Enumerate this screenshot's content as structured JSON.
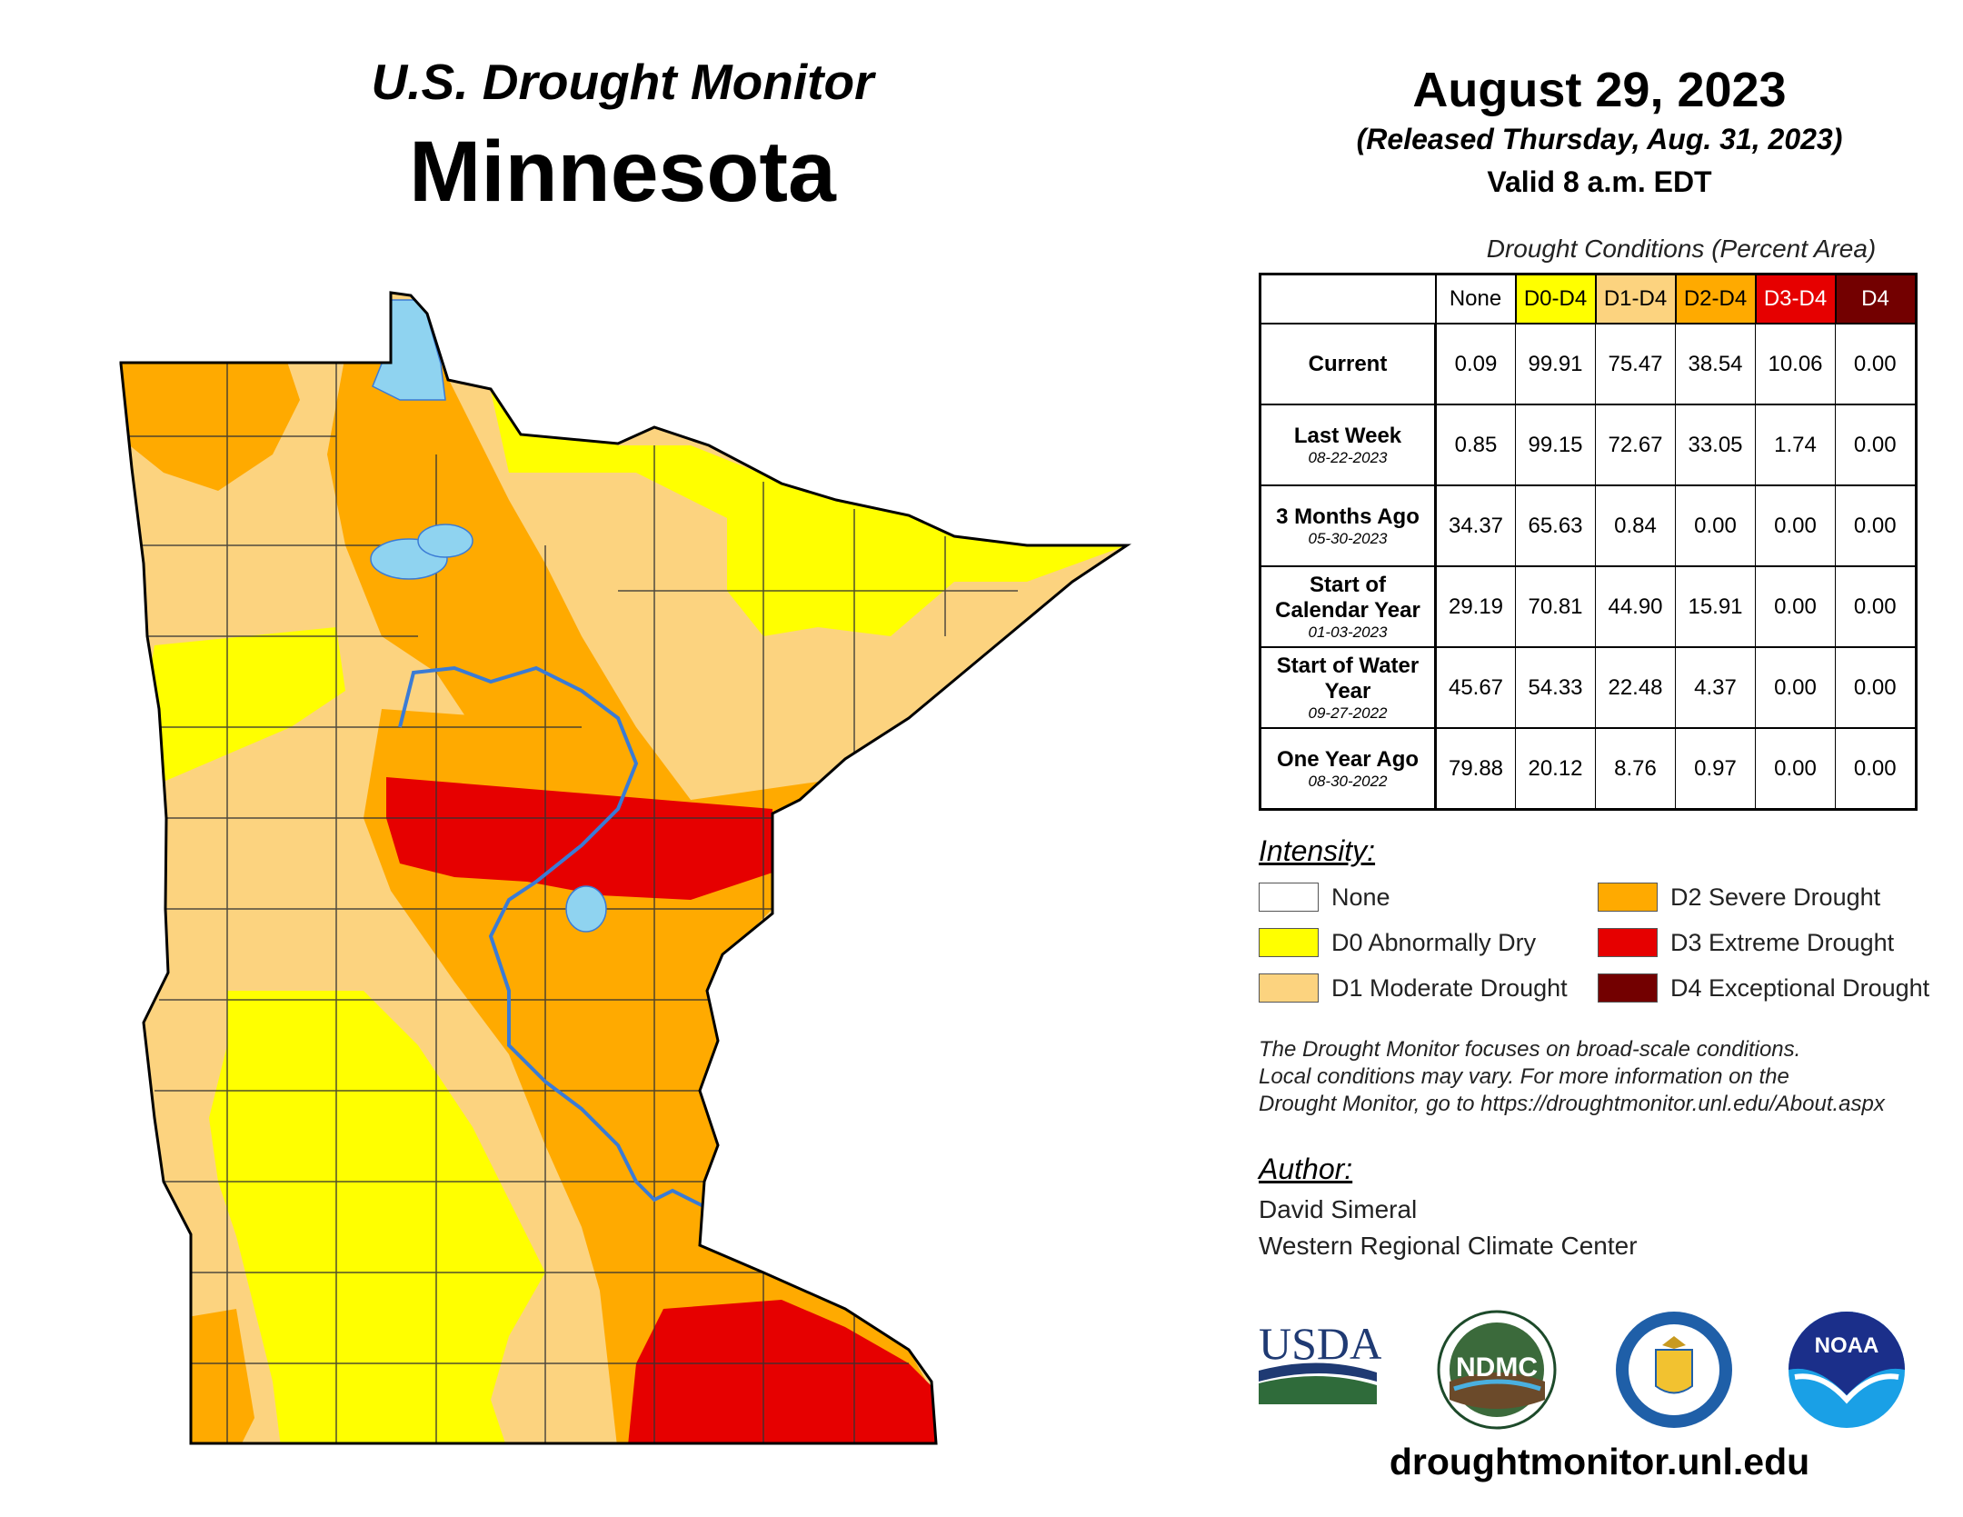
{
  "header": {
    "title": "U.S. Drought Monitor",
    "state": "Minnesota"
  },
  "date": {
    "title": "August 29, 2023",
    "released": "(Released Thursday, Aug. 31, 2023)",
    "valid": "Valid 8 a.m. EDT"
  },
  "table": {
    "caption": "Drought Conditions (Percent Area)",
    "columns": [
      "None",
      "D0-D4",
      "D1-D4",
      "D2-D4",
      "D3-D4",
      "D4"
    ],
    "rows": [
      {
        "label": "Current",
        "date": "",
        "values": [
          "0.09",
          "99.91",
          "75.47",
          "38.54",
          "10.06",
          "0.00"
        ]
      },
      {
        "label": "Last Week",
        "date": "08-22-2023",
        "values": [
          "0.85",
          "99.15",
          "72.67",
          "33.05",
          "1.74",
          "0.00"
        ]
      },
      {
        "label": "3 Months Ago",
        "date": "05-30-2023",
        "values": [
          "34.37",
          "65.63",
          "0.84",
          "0.00",
          "0.00",
          "0.00"
        ]
      },
      {
        "label": "Start of Calendar Year",
        "date": "01-03-2023",
        "values": [
          "29.19",
          "70.81",
          "44.90",
          "15.91",
          "0.00",
          "0.00"
        ]
      },
      {
        "label": "Start of Water Year",
        "date": "09-27-2022",
        "values": [
          "45.67",
          "54.33",
          "22.48",
          "4.37",
          "0.00",
          "0.00"
        ]
      },
      {
        "label": "One Year Ago",
        "date": "08-30-2022",
        "values": [
          "79.88",
          "20.12",
          "8.76",
          "0.97",
          "0.00",
          "0.00"
        ]
      }
    ]
  },
  "legend": {
    "title": "Intensity:",
    "items": [
      {
        "label": "None",
        "color": "#ffffff"
      },
      {
        "label": "D0 Abnormally Dry",
        "color": "#ffff00"
      },
      {
        "label": "D1 Moderate Drought",
        "color": "#fcd37f"
      },
      {
        "label": "D2 Severe Drought",
        "color": "#ffaa00"
      },
      {
        "label": "D3 Extreme Drought",
        "color": "#e60000"
      },
      {
        "label": "D4 Exceptional Drought",
        "color": "#730000"
      }
    ]
  },
  "note": {
    "line1": "The Drought Monitor focuses on broad-scale conditions.",
    "line2": "Local conditions may vary. For more information on the",
    "line3": "Drought Monitor, go to https://droughtmonitor.unl.edu/About.aspx"
  },
  "author": {
    "title": "Author:",
    "name": "David Simeral",
    "org": "Western Regional Climate Center"
  },
  "logos": {
    "usda": "USDA",
    "ndmc": "NDMC",
    "noaa": "NOAA"
  },
  "footer": {
    "url": "droughtmonitor.unl.edu"
  }
}
